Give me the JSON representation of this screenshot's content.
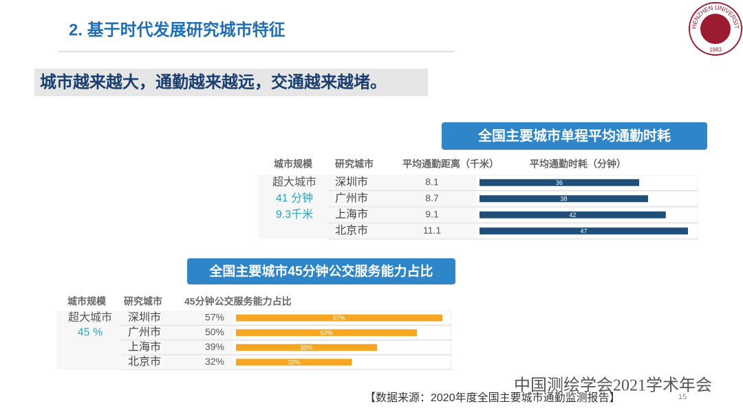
{
  "header": {
    "title": "2. 基于时代发展研究城市特征",
    "subtitle": "城市越来越大，通勤越来越远，交通越来越堵。"
  },
  "logo": {
    "text": "SHENZHEN UNIVERSITY",
    "year": "1983"
  },
  "chart_data": [
    {
      "type": "bar",
      "orientation": "horizontal",
      "title": "全国主要城市单程平均通勤时耗",
      "columns": [
        "城市规模",
        "研究城市",
        "平均通勤距离（千米）",
        "平均通勤时耗（分钟）"
      ],
      "group": {
        "label": "超大城市",
        "notes": [
          "41 分钟",
          "9.3千米"
        ]
      },
      "categories": [
        "深圳市",
        "广州市",
        "上海市",
        "北京市"
      ],
      "distances": [
        8.1,
        8.7,
        9.1,
        11.1
      ],
      "values": [
        36,
        38,
        42,
        47
      ],
      "color": "#1f4e79"
    },
    {
      "type": "bar",
      "orientation": "horizontal",
      "title": "全国主要城市45分钟公交服务能力占比",
      "columns": [
        "城市规模",
        "研究城市",
        "45分钟公交服务能力占比"
      ],
      "group": {
        "label": "超大城市",
        "notes": [
          "45 %"
        ]
      },
      "categories": [
        "深圳市",
        "广州市",
        "上海市",
        "北京市"
      ],
      "values": [
        57,
        50,
        39,
        32
      ],
      "value_labels": [
        "57%",
        "50%",
        "39%",
        "32%"
      ],
      "color": "#f5a623"
    }
  ],
  "footer": {
    "conference": "中国测绘学会2021学术年会",
    "source": "【数据来源：2020年度全国主要城市通勤监测报告】",
    "page": "15"
  }
}
